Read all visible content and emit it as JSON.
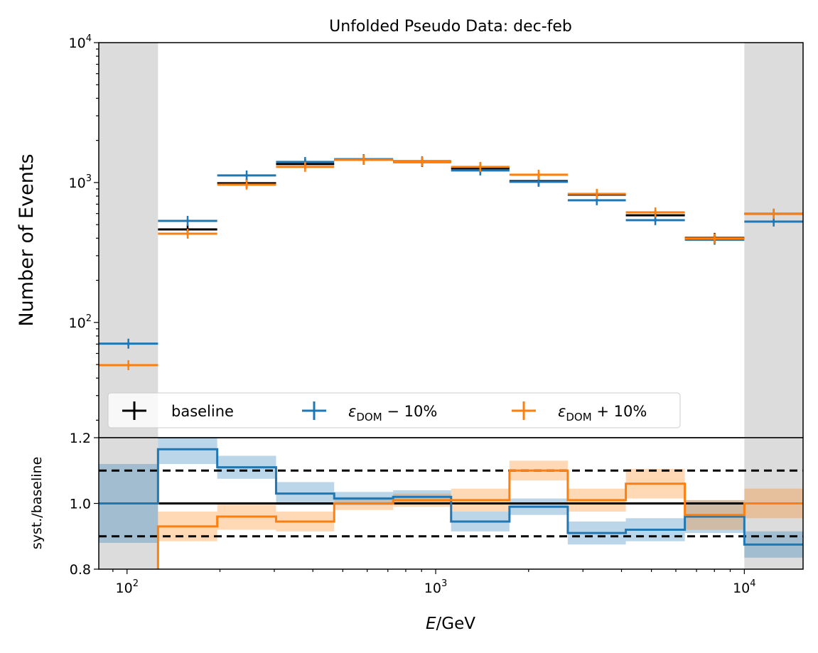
{
  "chart_data": {
    "type": "step",
    "title": "Unfolded Pseudo Data: dec-feb",
    "xlabel_italic": "E",
    "xlabel_rest": "/GeV",
    "ylabel_top": "Number of Events",
    "ylabel_bottom": "syst./baseline",
    "xscale": "log",
    "xlim": [
      81,
      15500
    ],
    "ylim_top": [
      15,
      10000
    ],
    "ylim_bottom": [
      0.8,
      1.2
    ],
    "x_ticks": [
      {
        "value": 100,
        "base": "10",
        "exp": "2"
      },
      {
        "value": 1000,
        "base": "10",
        "exp": "3"
      },
      {
        "value": 10000,
        "base": "10",
        "exp": "4"
      }
    ],
    "y_ticks_top": [
      {
        "value": 100,
        "base": "10",
        "exp": "2"
      },
      {
        "value": 1000,
        "base": "10",
        "exp": "3"
      },
      {
        "value": 10000,
        "base": "10",
        "exp": "4"
      }
    ],
    "y_ticks_bottom": [
      "0.8",
      "1.0",
      "1.2"
    ],
    "y_ticks_bottom_values": [
      0.8,
      1.0,
      1.2
    ],
    "reference_lines": [
      1.0,
      0.9,
      1.1
    ],
    "shaded_regions": [
      [
        81,
        126
      ],
      [
        10000,
        15500
      ]
    ],
    "bin_edges": [
      81,
      126,
      196,
      304,
      469,
      728,
      1122,
      1734,
      2679,
      4131,
      6416,
      10000,
      15500
    ],
    "series": [
      {
        "name": "baseline",
        "color": "#000000",
        "values": [
          70,
          462,
          988,
          1355,
          1452,
          1403,
          1263,
          1024,
          820,
          583,
          402,
          598
        ]
      },
      {
        "name": "eps_DOM - 10%",
        "color": "#1f77b4",
        "values": [
          70.5,
          532,
          1124,
          1403,
          1470,
          1420,
          1220,
          1012,
          747,
          538,
          390,
          526
        ],
        "ratio": [
          1.0,
          1.165,
          1.11,
          1.03,
          1.015,
          1.02,
          0.945,
          0.99,
          0.91,
          0.92,
          0.96,
          0.875
        ],
        "ratio_err": [
          0.12,
          0.045,
          0.035,
          0.035,
          0.02,
          0.02,
          0.03,
          0.025,
          0.035,
          0.035,
          0.05,
          0.04
        ]
      },
      {
        "name": "eps_DOM + 10%",
        "color": "#ff7f0e",
        "values": [
          49.5,
          431,
          966,
          1294,
          1452,
          1410,
          1294,
          1137,
          830,
          612,
          398,
          598
        ],
        "ratio": [
          0.7,
          0.93,
          0.96,
          0.945,
          1.0,
          1.01,
          1.01,
          1.1,
          1.01,
          1.06,
          0.965,
          1.0
        ],
        "ratio_err": [
          0.05,
          0.045,
          0.04,
          0.03,
          0.02,
          0.02,
          0.035,
          0.03,
          0.035,
          0.045,
          0.045,
          0.045
        ]
      }
    ],
    "legend": {
      "placement": "lower-center of top panel",
      "entries": [
        {
          "label": "baseline",
          "color": "#000000"
        },
        {
          "label_pre": "ε",
          "label_sub": "DOM",
          "label_post": " − 10%",
          "color": "#1f77b4"
        },
        {
          "label_pre": "ε",
          "label_sub": "DOM",
          "label_post": " + 10%",
          "color": "#ff7f0e"
        }
      ]
    }
  }
}
